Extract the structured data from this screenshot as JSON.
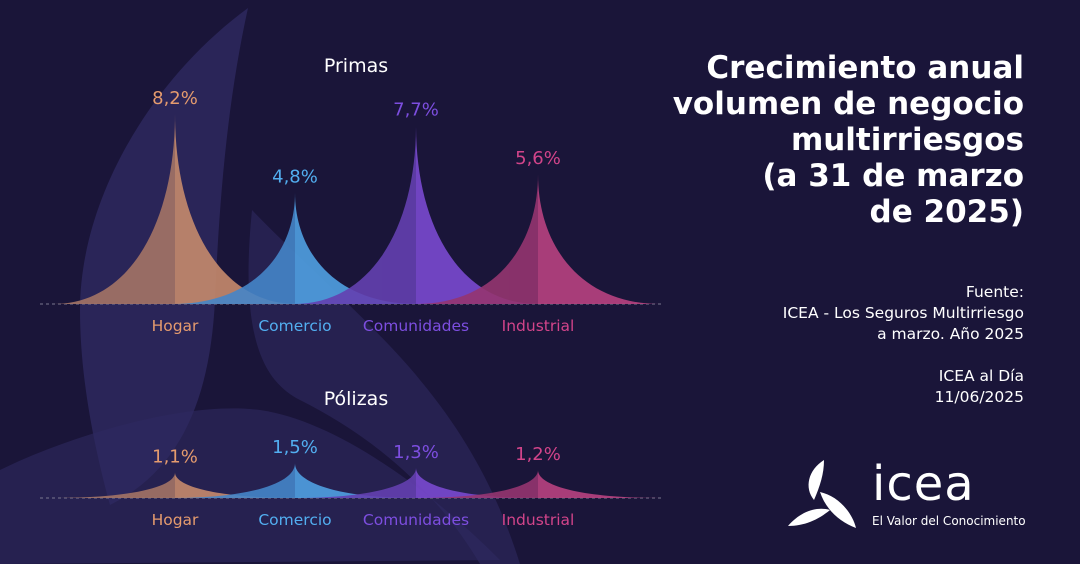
{
  "title": "Crecimiento anual\nvolumen de negocio\nmultirriesgos\n(a 31 de marzo\nde 2025)",
  "source": "Fuente:\nICEA - Los Seguros Multirriesgo\na marzo. Año 2025",
  "publication": "ICEA al Día\n11/06/2025",
  "logo": {
    "word": "icea",
    "tagline": "El Valor del Conocimiento"
  },
  "colors": {
    "background": "#1a1539",
    "Hogar": "#e59b6e",
    "Comercio": "#52aef0",
    "Comunidades": "#7d4ee0",
    "Industrial": "#d2448a"
  },
  "chart_data": [
    {
      "type": "area",
      "title": "Primas",
      "categories": [
        "Hogar",
        "Comercio",
        "Comunidades",
        "Industrial"
      ],
      "values": [
        8.2,
        4.8,
        7.7,
        5.6
      ],
      "labels": [
        "8,2%",
        "4,8%",
        "7,7%",
        "5,6%"
      ],
      "unit": "%"
    },
    {
      "type": "area",
      "title": "Pólizas",
      "categories": [
        "Hogar",
        "Comercio",
        "Comunidades",
        "Industrial"
      ],
      "values": [
        1.1,
        1.5,
        1.3,
        1.2
      ],
      "labels": [
        "1,1%",
        "1,5%",
        "1,3%",
        "1,2%"
      ],
      "unit": "%"
    }
  ]
}
